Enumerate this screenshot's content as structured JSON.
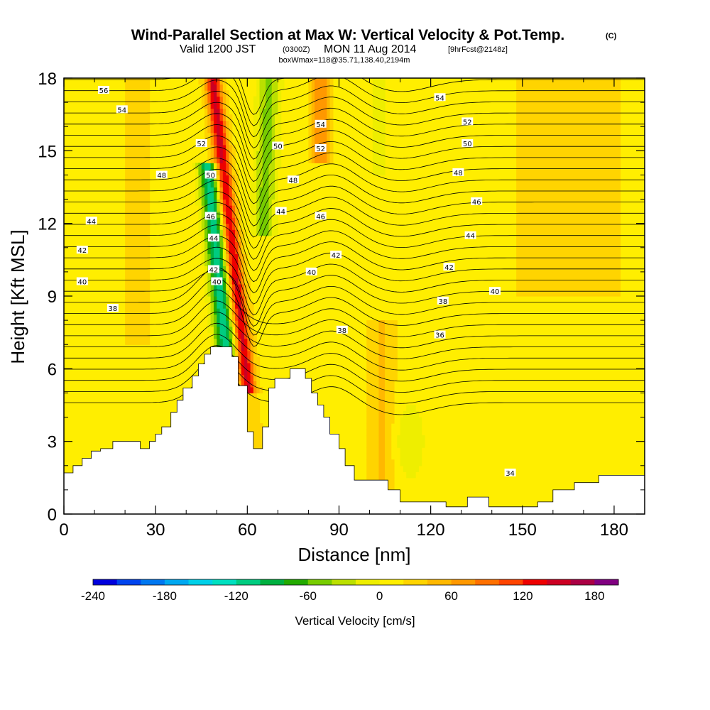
{
  "header": {
    "title": "Wind-Parallel Section at Max W: Vertical Velocity & Pot.Temp.",
    "copyright": "(C)",
    "valid_prefix": "Valid 1200 JST",
    "valid_utc": "(0300Z)",
    "valid_date": "MON 11 Aug 2014",
    "forecast_tag": "[9hrFcst@2148z]",
    "box_info": "boxWmax=118@35.71,138.40,2194m"
  },
  "chart_data": {
    "type": "heatmap",
    "title": "Wind-Parallel Section at Max W: Vertical Velocity & Pot.Temp.",
    "xlabel": "Distance [nm]",
    "ylabel": "Height [Kft MSL]",
    "xlim": [
      0,
      190
    ],
    "ylim": [
      0,
      18
    ],
    "x_ticks": [
      0,
      30,
      60,
      90,
      120,
      150,
      180
    ],
    "y_ticks": [
      0,
      3,
      6,
      9,
      12,
      15,
      18
    ],
    "colorbar": {
      "label": "Vertical Velocity [cm/s]",
      "range": [
        -240,
        200
      ],
      "step": 20,
      "tick_values": [
        -240,
        -180,
        -120,
        -60,
        0,
        60,
        120,
        180
      ],
      "colors": [
        "#0000dd",
        "#0044ee",
        "#0077f0",
        "#00a8f0",
        "#00d0e8",
        "#00e0c0",
        "#00cc80",
        "#00b040",
        "#22aa00",
        "#77cc00",
        "#bbe000",
        "#eeee00",
        "#ffee00",
        "#ffd400",
        "#ffb800",
        "#ff9800",
        "#ff7000",
        "#ff4400",
        "#ee0000",
        "#cc0022",
        "#aa0044",
        "#800080"
      ]
    },
    "w_max": 118,
    "contour_labels": [
      {
        "x": 13,
        "y": 17.5,
        "text": "56"
      },
      {
        "x": 19,
        "y": 16.7,
        "text": "54"
      },
      {
        "x": 45,
        "y": 15.3,
        "text": "52"
      },
      {
        "x": 32,
        "y": 14.0,
        "text": "48"
      },
      {
        "x": 48,
        "y": 14.0,
        "text": "50"
      },
      {
        "x": 9,
        "y": 12.1,
        "text": "44"
      },
      {
        "x": 48,
        "y": 12.3,
        "text": "46"
      },
      {
        "x": 49,
        "y": 11.4,
        "text": "44"
      },
      {
        "x": 6,
        "y": 10.9,
        "text": "42"
      },
      {
        "x": 49,
        "y": 10.1,
        "text": "42"
      },
      {
        "x": 6,
        "y": 9.6,
        "text": "40"
      },
      {
        "x": 50,
        "y": 9.6,
        "text": "40"
      },
      {
        "x": 16,
        "y": 8.5,
        "text": "38"
      },
      {
        "x": 84,
        "y": 16.1,
        "text": "54"
      },
      {
        "x": 70,
        "y": 15.2,
        "text": "50"
      },
      {
        "x": 84,
        "y": 15.1,
        "text": "52"
      },
      {
        "x": 75,
        "y": 13.8,
        "text": "48"
      },
      {
        "x": 71,
        "y": 12.5,
        "text": "44"
      },
      {
        "x": 84,
        "y": 12.3,
        "text": "46"
      },
      {
        "x": 81,
        "y": 10.0,
        "text": "40"
      },
      {
        "x": 89,
        "y": 10.7,
        "text": "42"
      },
      {
        "x": 91,
        "y": 7.6,
        "text": "38"
      },
      {
        "x": 123,
        "y": 17.2,
        "text": "54"
      },
      {
        "x": 132,
        "y": 16.2,
        "text": "52"
      },
      {
        "x": 132,
        "y": 15.3,
        "text": "50"
      },
      {
        "x": 129,
        "y": 14.1,
        "text": "48"
      },
      {
        "x": 135,
        "y": 12.9,
        "text": "46"
      },
      {
        "x": 133,
        "y": 11.5,
        "text": "44"
      },
      {
        "x": 126,
        "y": 10.2,
        "text": "42"
      },
      {
        "x": 141,
        "y": 9.2,
        "text": "40"
      },
      {
        "x": 124,
        "y": 8.8,
        "text": "38"
      },
      {
        "x": 123,
        "y": 7.4,
        "text": "36"
      },
      {
        "x": 146,
        "y": 1.7,
        "text": "34"
      }
    ],
    "terrain": [
      [
        0,
        1.7
      ],
      [
        3,
        1.7
      ],
      [
        3,
        2.0
      ],
      [
        6,
        2.0
      ],
      [
        6,
        2.3
      ],
      [
        9,
        2.3
      ],
      [
        9,
        2.6
      ],
      [
        12,
        2.6
      ],
      [
        12,
        2.7
      ],
      [
        16,
        2.7
      ],
      [
        16,
        3.0
      ],
      [
        25,
        3.0
      ],
      [
        25,
        2.7
      ],
      [
        28,
        2.7
      ],
      [
        28,
        3.0
      ],
      [
        30,
        3.0
      ],
      [
        30,
        3.3
      ],
      [
        32,
        3.3
      ],
      [
        32,
        3.6
      ],
      [
        35,
        3.6
      ],
      [
        35,
        4.2
      ],
      [
        37,
        4.2
      ],
      [
        37,
        4.7
      ],
      [
        39,
        4.7
      ],
      [
        39,
        5.2
      ],
      [
        42,
        5.2
      ],
      [
        42,
        5.7
      ],
      [
        44,
        5.7
      ],
      [
        44,
        6.2
      ],
      [
        46,
        6.2
      ],
      [
        46,
        6.6
      ],
      [
        48,
        6.6
      ],
      [
        48,
        6.9
      ],
      [
        55,
        6.9
      ],
      [
        55,
        6.5
      ],
      [
        57,
        6.5
      ],
      [
        57,
        5.3
      ],
      [
        60,
        5.3
      ],
      [
        60,
        3.4
      ],
      [
        62,
        3.4
      ],
      [
        62,
        2.7
      ],
      [
        65,
        2.7
      ],
      [
        65,
        3.6
      ],
      [
        67,
        3.6
      ],
      [
        67,
        5.2
      ],
      [
        69,
        5.2
      ],
      [
        69,
        5.6
      ],
      [
        74,
        5.6
      ],
      [
        74,
        6.0
      ],
      [
        79,
        6.0
      ],
      [
        79,
        5.6
      ],
      [
        81,
        5.6
      ],
      [
        81,
        5.0
      ],
      [
        83,
        5.0
      ],
      [
        83,
        4.5
      ],
      [
        85,
        4.5
      ],
      [
        85,
        4.0
      ],
      [
        87,
        4.0
      ],
      [
        87,
        3.3
      ],
      [
        90,
        3.3
      ],
      [
        90,
        2.7
      ],
      [
        92,
        2.7
      ],
      [
        92,
        2.0
      ],
      [
        95,
        2.0
      ],
      [
        95,
        1.4
      ],
      [
        106,
        1.4
      ],
      [
        106,
        1.0
      ],
      [
        110,
        1.0
      ],
      [
        110,
        0.5
      ],
      [
        125,
        0.5
      ],
      [
        125,
        0.3
      ],
      [
        132,
        0.3
      ],
      [
        132,
        0.7
      ],
      [
        139,
        0.7
      ],
      [
        139,
        0.3
      ],
      [
        155,
        0.3
      ],
      [
        155,
        0.5
      ],
      [
        160,
        0.5
      ],
      [
        160,
        1.0
      ],
      [
        167,
        1.0
      ],
      [
        167,
        1.3
      ],
      [
        175,
        1.3
      ],
      [
        175,
        1.6
      ],
      [
        190,
        1.6
      ]
    ]
  }
}
